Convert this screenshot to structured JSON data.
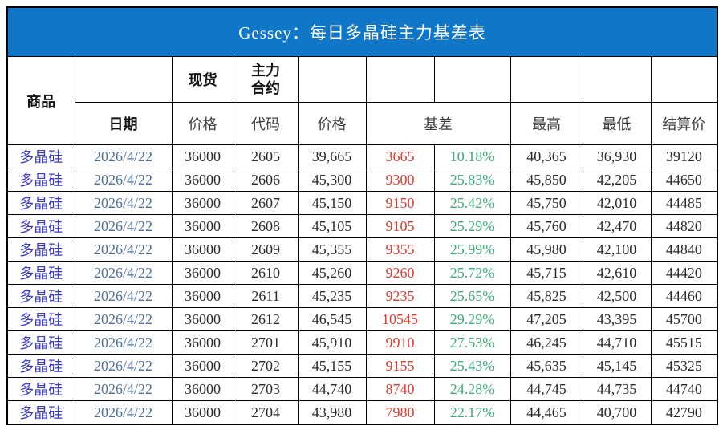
{
  "title": "Gessey：每日多晶硅主力基差表",
  "colors": {
    "title_bar_bg": "#1076C8",
    "title_text": "#ffffff",
    "header_band_bg": "#E9EFF9",
    "commodity_text": "#3A3AD0",
    "date_text": "#4E6F9E",
    "basis_text": "#E8392B",
    "percent_text": "#3BAF77",
    "number_text": "#2b2b2b",
    "border": "#000000"
  },
  "header": {
    "commodity": "商品",
    "date": "日期",
    "spot": "现货",
    "main_contract_line1": "主力",
    "main_contract_line2": "合约",
    "spot_price": "价格",
    "code": "代码",
    "futures_price": "价格",
    "basis": "基差",
    "high": "最高",
    "low": "最低",
    "settlement": "结算价"
  },
  "table": {
    "rows": [
      {
        "commodity": "多晶硅",
        "date": "2026/4/22",
        "spot_price": "36000",
        "code": "2605",
        "price": "39,665",
        "basis": "3665",
        "basis_pct": "10.18%",
        "high": "40,365",
        "low": "36,930",
        "settle": "39120"
      },
      {
        "commodity": "多晶硅",
        "date": "2026/4/22",
        "spot_price": "36000",
        "code": "2606",
        "price": "45,300",
        "basis": "9300",
        "basis_pct": "25.83%",
        "high": "45,850",
        "low": "42,205",
        "settle": "44650"
      },
      {
        "commodity": "多晶硅",
        "date": "2026/4/22",
        "spot_price": "36000",
        "code": "2607",
        "price": "45,150",
        "basis": "9150",
        "basis_pct": "25.42%",
        "high": "45,750",
        "low": "42,010",
        "settle": "44485"
      },
      {
        "commodity": "多晶硅",
        "date": "2026/4/22",
        "spot_price": "36000",
        "code": "2608",
        "price": "45,105",
        "basis": "9105",
        "basis_pct": "25.29%",
        "high": "45,760",
        "low": "42,470",
        "settle": "44820"
      },
      {
        "commodity": "多晶硅",
        "date": "2026/4/22",
        "spot_price": "36000",
        "code": "2609",
        "price": "45,355",
        "basis": "9355",
        "basis_pct": "25.99%",
        "high": "45,980",
        "low": "42,100",
        "settle": "44840"
      },
      {
        "commodity": "多晶硅",
        "date": "2026/4/22",
        "spot_price": "36000",
        "code": "2610",
        "price": "45,260",
        "basis": "9260",
        "basis_pct": "25.72%",
        "high": "45,715",
        "low": "42,610",
        "settle": "44420"
      },
      {
        "commodity": "多晶硅",
        "date": "2026/4/22",
        "spot_price": "36000",
        "code": "2611",
        "price": "45,235",
        "basis": "9235",
        "basis_pct": "25.65%",
        "high": "45,825",
        "low": "42,500",
        "settle": "44460"
      },
      {
        "commodity": "多晶硅",
        "date": "2026/4/22",
        "spot_price": "36000",
        "code": "2612",
        "price": "46,545",
        "basis": "10545",
        "basis_pct": "29.29%",
        "high": "47,205",
        "low": "43,395",
        "settle": "45700"
      },
      {
        "commodity": "多晶硅",
        "date": "2026/4/22",
        "spot_price": "36000",
        "code": "2701",
        "price": "45,910",
        "basis": "9910",
        "basis_pct": "27.53%",
        "high": "46,245",
        "low": "44,710",
        "settle": "45515"
      },
      {
        "commodity": "多晶硅",
        "date": "2026/4/22",
        "spot_price": "36000",
        "code": "2702",
        "price": "45,155",
        "basis": "9155",
        "basis_pct": "25.43%",
        "high": "45,635",
        "low": "45,145",
        "settle": "45325"
      },
      {
        "commodity": "多晶硅",
        "date": "2026/4/22",
        "spot_price": "36000",
        "code": "2703",
        "price": "44,740",
        "basis": "8740",
        "basis_pct": "24.28%",
        "high": "44,745",
        "low": "44,735",
        "settle": "44740"
      },
      {
        "commodity": "多晶硅",
        "date": "2026/4/22",
        "spot_price": "36000",
        "code": "2704",
        "price": "43,980",
        "basis": "7980",
        "basis_pct": "22.17%",
        "high": "44,465",
        "low": "40,700",
        "settle": "42790"
      }
    ]
  }
}
